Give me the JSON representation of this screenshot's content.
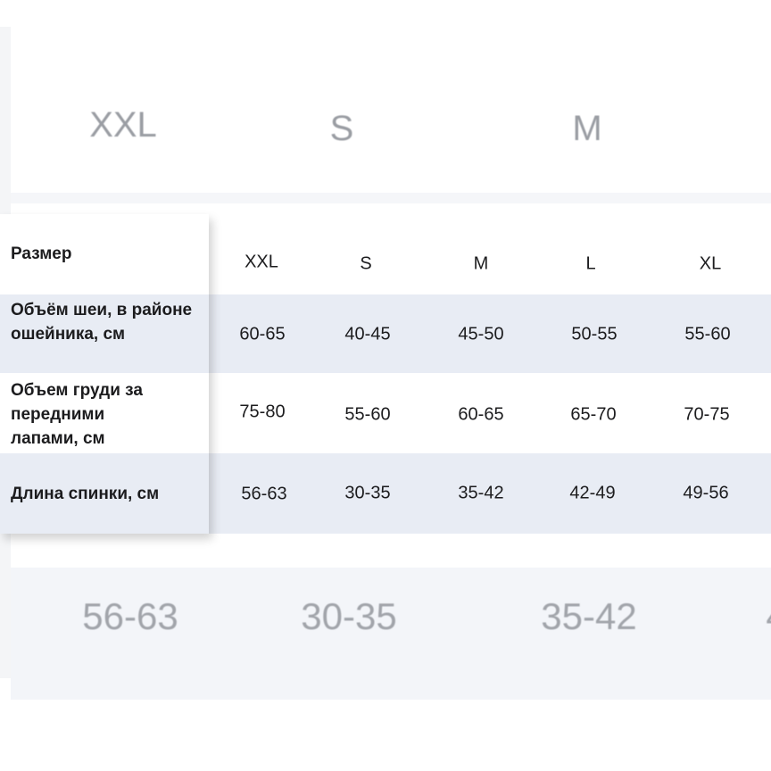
{
  "background_top": {
    "sizes": [
      "XXL",
      "S",
      "M"
    ]
  },
  "background_bottom": {
    "values": [
      "56-63",
      "30-35",
      "35-42",
      "4"
    ]
  },
  "table": {
    "header_label": "Размер",
    "sizes": [
      "XXL",
      "S",
      "M",
      "L",
      "XL"
    ],
    "rows": [
      {
        "label": "Объём шеи, в районе ошейника, см",
        "values": [
          "60-65",
          "40-45",
          "45-50",
          "50-55",
          "55-60"
        ]
      },
      {
        "label": "Объем груди за передними лапами, см",
        "values": [
          "75-80",
          "55-60",
          "60-65",
          "65-70",
          "70-75"
        ]
      },
      {
        "label": "Длина спинки, см",
        "values": [
          "56-63",
          "30-35",
          "35-42",
          "42-49",
          "49-56"
        ]
      }
    ]
  },
  "colors": {
    "row_tint": "#e8ecf4",
    "text": "#1c1c1e",
    "faded_text": "#9a9da3"
  }
}
